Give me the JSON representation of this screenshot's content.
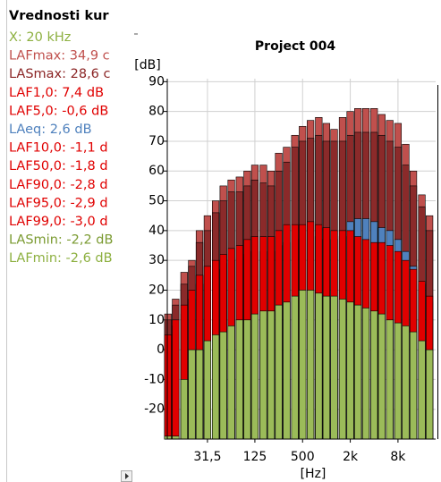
{
  "panel": {
    "title": "Vrednosti kur",
    "items": [
      {
        "text": "X: 20 kHz",
        "color": "#8db040"
      },
      {
        "text": "LAFmax: 34,9 c",
        "color": "#c0504d"
      },
      {
        "text": "LASmax: 28,6 c",
        "color": "#8b2525"
      },
      {
        "text": "LAF1,0: 7,4 dB",
        "color": "#e00000"
      },
      {
        "text": "LAF5,0: -0,6 dB",
        "color": "#e00000"
      },
      {
        "text": "LAeq: 2,6 dB",
        "color": "#4f81bd"
      },
      {
        "text": "LAF10,0: -1,1 d",
        "color": "#e00000"
      },
      {
        "text": "LAF50,0: -1,8 d",
        "color": "#e00000"
      },
      {
        "text": "LAF90,0: -2,8 d",
        "color": "#e00000"
      },
      {
        "text": "LAF95,0: -2,9 d",
        "color": "#e00000"
      },
      {
        "text": "LAF99,0: -3,0 d",
        "color": "#e00000"
      },
      {
        "text": "LASmin: -2,2 dB",
        "color": "#7a9a30"
      },
      {
        "text": "LAFmin: -2,6 dB",
        "color": "#8db040"
      }
    ]
  },
  "chart_data": {
    "type": "bar",
    "title": "Project 004",
    "y_label": "[dB]",
    "x_label": "[Hz]",
    "log_x": true,
    "grid": true,
    "xlim": [
      9.8,
      23900
    ],
    "ylim": [
      -30,
      91
    ],
    "yticks": [
      -20,
      -10,
      0,
      10,
      20,
      30,
      40,
      50,
      60,
      70,
      80,
      90
    ],
    "xticks": [
      {
        "value": 31.5,
        "label": "31,5"
      },
      125,
      500,
      {
        "value": 2000,
        "label": "2k"
      },
      {
        "value": 8000,
        "label": "8k"
      }
    ],
    "x": [
      10,
      12.5,
      16,
      20,
      25,
      31.5,
      40,
      50,
      63,
      80,
      100,
      125,
      160,
      200,
      250,
      315,
      400,
      500,
      630,
      800,
      1000,
      1250,
      1600,
      2000,
      2500,
      3150,
      4000,
      5000,
      6300,
      8000,
      10000,
      12500,
      16000,
      20000
    ],
    "series": [
      {
        "color": "#c0504d",
        "values": [
          12,
          17,
          26,
          30,
          40,
          45,
          50,
          55,
          57,
          58,
          60,
          62,
          62,
          60,
          66,
          68,
          72,
          75,
          77,
          78,
          76,
          74,
          78,
          80,
          81,
          81,
          81,
          79,
          77,
          76,
          69,
          60,
          52,
          45
        ]
      },
      {
        "color": "#8b2a2a",
        "values": [
          10,
          15,
          22,
          28,
          36,
          40,
          46,
          50,
          53,
          53,
          55,
          57,
          56,
          55,
          60,
          63,
          68,
          70,
          71,
          72,
          70,
          70,
          70,
          72,
          73,
          73,
          73,
          72,
          70,
          68,
          62,
          55,
          48,
          40
        ]
      },
      {
        "color": "#4f81bd",
        "values": [
          3,
          8,
          12,
          17,
          22,
          25,
          27,
          29,
          30,
          31,
          32,
          33,
          33,
          33,
          35,
          36,
          37,
          37,
          38,
          38,
          37,
          37,
          38,
          43,
          44,
          44,
          43,
          41,
          40,
          37,
          33,
          28,
          22,
          16
        ]
      },
      {
        "color": "#e00000",
        "values": [
          5,
          10,
          15,
          20,
          25,
          28,
          30,
          32,
          34,
          35,
          37,
          38,
          38,
          38,
          40,
          42,
          42,
          42,
          43,
          42,
          41,
          40,
          40,
          40,
          38,
          37,
          36,
          36,
          35,
          33,
          30,
          27,
          23,
          18
        ]
      },
      {
        "color": "#9bbb59",
        "values": [
          -29,
          -29,
          -10,
          0,
          0,
          3,
          5,
          6,
          8,
          10,
          10,
          12,
          13,
          13,
          15,
          16,
          18,
          20,
          20,
          19,
          18,
          18,
          17,
          16,
          15,
          14,
          13,
          12,
          10,
          9,
          8,
          6,
          3,
          0
        ]
      }
    ]
  }
}
